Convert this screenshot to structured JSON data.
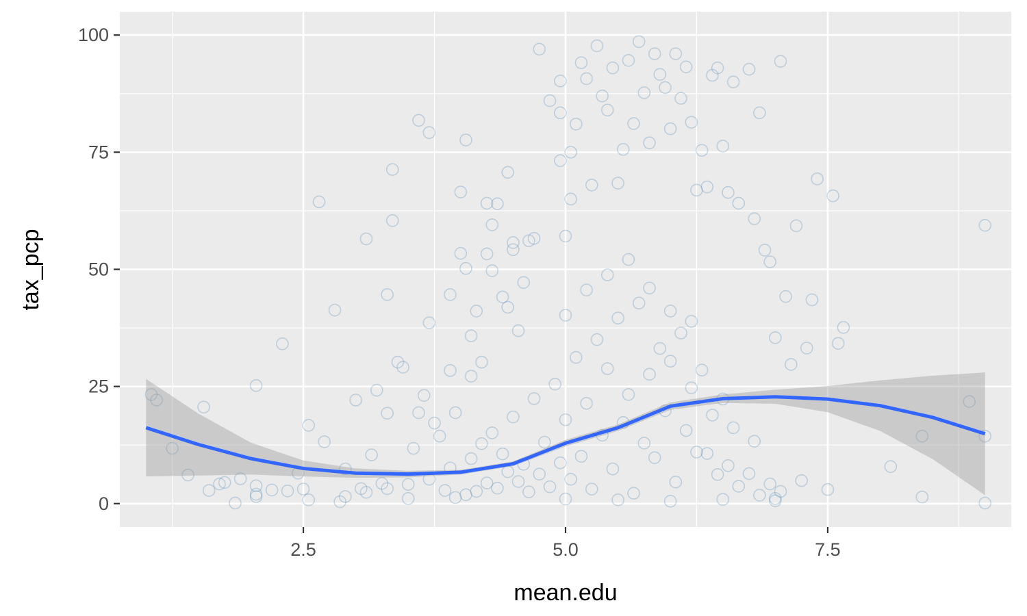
{
  "chart_data": {
    "type": "scatter",
    "title": "",
    "xlabel": "mean.edu",
    "ylabel": "tax_pcp",
    "xlim": [
      0.75,
      9.25
    ],
    "ylim": [
      -5,
      105
    ],
    "x_ticks": [
      2.5,
      5.0,
      7.5
    ],
    "x_tick_labels": [
      "2.5",
      "5.0",
      "7.5"
    ],
    "y_ticks": [
      0,
      25,
      50,
      75,
      100
    ],
    "y_tick_labels": [
      "0",
      "25",
      "50",
      "75",
      "100"
    ],
    "grid": true,
    "panel_background": "#ebebeb",
    "grid_color": "#ffffff",
    "point_color": "#4682b4",
    "smooth_line_color": "#3366ff",
    "ribbon_color": "#999999",
    "points": [
      [
        1.05,
        23.3
      ],
      [
        1.1,
        22.1
      ],
      [
        1.25,
        11.8
      ],
      [
        1.4,
        6.1
      ],
      [
        1.55,
        20.6
      ],
      [
        1.6,
        2.8
      ],
      [
        1.7,
        4.2
      ],
      [
        1.75,
        4.5
      ],
      [
        1.85,
        0.1
      ],
      [
        1.9,
        5.3
      ],
      [
        2.05,
        25.2
      ],
      [
        2.05,
        3.8
      ],
      [
        2.05,
        2.0
      ],
      [
        2.05,
        1.5
      ],
      [
        2.2,
        2.9
      ],
      [
        2.3,
        34.1
      ],
      [
        2.35,
        2.7
      ],
      [
        2.45,
        6.5
      ],
      [
        2.5,
        3.1
      ],
      [
        2.55,
        16.7
      ],
      [
        2.55,
        0.8
      ],
      [
        2.65,
        64.4
      ],
      [
        2.7,
        13.2
      ],
      [
        2.8,
        41.3
      ],
      [
        2.85,
        0.4
      ],
      [
        2.9,
        7.4
      ],
      [
        3.0,
        22.1
      ],
      [
        3.05,
        3.2
      ],
      [
        3.1,
        56.5
      ],
      [
        3.15,
        10.4
      ],
      [
        3.2,
        24.2
      ],
      [
        3.25,
        4.3
      ],
      [
        3.3,
        19.3
      ],
      [
        3.3,
        44.6
      ],
      [
        3.35,
        71.3
      ],
      [
        3.35,
        60.4
      ],
      [
        3.4,
        30.2
      ],
      [
        3.45,
        29.1
      ],
      [
        3.5,
        1.1
      ],
      [
        3.55,
        11.8
      ],
      [
        3.6,
        81.8
      ],
      [
        3.7,
        79.2
      ],
      [
        3.7,
        38.6
      ],
      [
        3.65,
        23.1
      ],
      [
        3.6,
        19.4
      ],
      [
        3.75,
        17.2
      ],
      [
        3.8,
        14.4
      ],
      [
        3.9,
        44.6
      ],
      [
        3.9,
        28.4
      ],
      [
        3.95,
        19.4
      ],
      [
        4.0,
        66.5
      ],
      [
        4.0,
        53.4
      ],
      [
        4.05,
        77.6
      ],
      [
        4.05,
        50.2
      ],
      [
        4.1,
        35.8
      ],
      [
        4.1,
        27.2
      ],
      [
        4.15,
        41.1
      ],
      [
        4.2,
        30.2
      ],
      [
        4.25,
        64.1
      ],
      [
        4.25,
        53.3
      ],
      [
        4.3,
        59.5
      ],
      [
        4.3,
        49.7
      ],
      [
        4.35,
        64.0
      ],
      [
        4.4,
        44.1
      ],
      [
        4.45,
        70.7
      ],
      [
        4.45,
        41.9
      ],
      [
        4.5,
        55.7
      ],
      [
        4.5,
        54.2
      ],
      [
        4.55,
        36.9
      ],
      [
        4.6,
        47.2
      ],
      [
        4.65,
        56.1
      ],
      [
        4.7,
        56.6
      ],
      [
        4.75,
        97.0
      ],
      [
        4.85,
        86.0
      ],
      [
        4.95,
        90.2
      ],
      [
        4.95,
        83.4
      ],
      [
        4.95,
        73.2
      ],
      [
        5.0,
        57.1
      ],
      [
        5.05,
        75.0
      ],
      [
        5.05,
        65.0
      ],
      [
        5.1,
        81.0
      ],
      [
        5.15,
        94.1
      ],
      [
        5.2,
        90.7
      ],
      [
        5.25,
        68.0
      ],
      [
        5.3,
        97.7
      ],
      [
        5.35,
        87.0
      ],
      [
        5.4,
        84.0
      ],
      [
        5.45,
        93.0
      ],
      [
        5.5,
        68.4
      ],
      [
        5.55,
        75.6
      ],
      [
        5.6,
        94.6
      ],
      [
        5.65,
        81.1
      ],
      [
        5.7,
        98.6
      ],
      [
        5.75,
        87.7
      ],
      [
        5.8,
        77.0
      ],
      [
        5.85,
        96.0
      ],
      [
        5.9,
        91.6
      ],
      [
        5.95,
        88.8
      ],
      [
        6.0,
        80.0
      ],
      [
        6.05,
        96.0
      ],
      [
        6.1,
        86.5
      ],
      [
        6.15,
        93.2
      ],
      [
        6.2,
        81.4
      ],
      [
        6.25,
        66.9
      ],
      [
        6.3,
        75.4
      ],
      [
        6.35,
        67.6
      ],
      [
        6.4,
        91.4
      ],
      [
        6.45,
        93.0
      ],
      [
        6.5,
        76.3
      ],
      [
        6.55,
        66.4
      ],
      [
        6.6,
        90.0
      ],
      [
        6.65,
        64.1
      ],
      [
        6.75,
        92.7
      ],
      [
        6.8,
        60.8
      ],
      [
        6.85,
        83.4
      ],
      [
        6.9,
        54.1
      ],
      [
        6.95,
        51.6
      ],
      [
        7.0,
        35.4
      ],
      [
        7.05,
        94.4
      ],
      [
        7.1,
        44.2
      ],
      [
        7.15,
        29.7
      ],
      [
        7.2,
        59.3
      ],
      [
        7.3,
        33.2
      ],
      [
        7.35,
        43.5
      ],
      [
        7.4,
        69.3
      ],
      [
        7.5,
        3.0
      ],
      [
        7.55,
        65.7
      ],
      [
        7.6,
        34.2
      ],
      [
        7.65,
        37.6
      ],
      [
        8.1,
        7.9
      ],
      [
        8.4,
        14.4
      ],
      [
        8.4,
        1.4
      ],
      [
        8.85,
        21.8
      ],
      [
        9.0,
        59.4
      ],
      [
        9.0,
        14.4
      ],
      [
        9.0,
        0.1
      ],
      [
        4.2,
        12.8
      ],
      [
        4.4,
        10.6
      ],
      [
        4.6,
        8.4
      ],
      [
        4.8,
        13.1
      ],
      [
        5.0,
        17.9
      ],
      [
        5.2,
        21.4
      ],
      [
        5.4,
        28.8
      ],
      [
        5.6,
        23.3
      ],
      [
        5.8,
        27.6
      ],
      [
        6.0,
        30.4
      ],
      [
        6.2,
        24.7
      ],
      [
        6.4,
        18.9
      ],
      [
        6.6,
        16.2
      ],
      [
        6.8,
        13.3
      ],
      [
        4.9,
        25.5
      ],
      [
        5.1,
        31.2
      ],
      [
        5.3,
        35.0
      ],
      [
        5.5,
        39.6
      ],
      [
        5.7,
        42.8
      ],
      [
        5.9,
        33.1
      ],
      [
        6.1,
        36.4
      ],
      [
        6.3,
        28.5
      ],
      [
        6.5,
        22.3
      ],
      [
        5.0,
        40.2
      ],
      [
        5.2,
        45.6
      ],
      [
        5.4,
        48.8
      ],
      [
        5.6,
        52.1
      ],
      [
        5.8,
        46.0
      ],
      [
        6.0,
        41.1
      ],
      [
        6.2,
        38.9
      ],
      [
        4.7,
        22.4
      ],
      [
        4.5,
        18.5
      ],
      [
        4.3,
        15.1
      ],
      [
        4.1,
        9.6
      ],
      [
        3.9,
        7.6
      ],
      [
        3.7,
        5.2
      ],
      [
        3.5,
        4.1
      ],
      [
        3.3,
        3.2
      ],
      [
        3.1,
        2.4
      ],
      [
        2.9,
        1.5
      ],
      [
        5.05,
        5.2
      ],
      [
        5.25,
        3.1
      ],
      [
        5.45,
        7.4
      ],
      [
        5.65,
        2.2
      ],
      [
        5.85,
        9.8
      ],
      [
        6.05,
        4.6
      ],
      [
        6.25,
        11.0
      ],
      [
        6.45,
        6.2
      ],
      [
        6.65,
        3.7
      ],
      [
        6.85,
        1.8
      ],
      [
        4.85,
        3.6
      ],
      [
        4.65,
        2.5
      ],
      [
        4.45,
        6.8
      ],
      [
        4.25,
        4.4
      ],
      [
        4.05,
        1.9
      ],
      [
        3.85,
        2.8
      ],
      [
        7.05,
        2.6
      ],
      [
        7.25,
        4.9
      ],
      [
        7.0,
        0.6
      ],
      [
        7.0,
        1.1
      ],
      [
        5.15,
        10.1
      ],
      [
        5.35,
        14.6
      ],
      [
        5.55,
        17.3
      ],
      [
        5.75,
        12.9
      ],
      [
        5.95,
        19.8
      ],
      [
        6.15,
        15.6
      ],
      [
        6.35,
        10.7
      ],
      [
        6.55,
        8.1
      ],
      [
        6.75,
        6.4
      ],
      [
        6.95,
        4.2
      ],
      [
        4.95,
        8.7
      ],
      [
        4.75,
        6.3
      ],
      [
        4.55,
        4.7
      ],
      [
        4.35,
        3.3
      ],
      [
        4.15,
        2.6
      ],
      [
        3.95,
        1.3
      ],
      [
        5.0,
        1.0
      ],
      [
        5.5,
        0.8
      ],
      [
        6.0,
        0.5
      ],
      [
        6.5,
        0.9
      ]
    ],
    "smooth_line": {
      "x": [
        1.0,
        1.5,
        2.0,
        2.5,
        3.0,
        3.5,
        4.0,
        4.5,
        5.0,
        5.5,
        6.0,
        6.5,
        7.0,
        7.5,
        8.0,
        8.5,
        9.0
      ],
      "y": [
        16.2,
        12.6,
        9.6,
        7.5,
        6.5,
        6.3,
        6.7,
        8.5,
        12.9,
        16.2,
        20.8,
        22.4,
        22.8,
        22.3,
        20.9,
        18.4,
        14.9
      ]
    },
    "ribbon": {
      "x": [
        1.0,
        1.5,
        2.0,
        2.5,
        3.0,
        3.5,
        4.0,
        4.5,
        5.0,
        5.5,
        6.0,
        6.5,
        7.0,
        7.5,
        8.0,
        8.5,
        9.0
      ],
      "lower": [
        5.8,
        6.0,
        6.2,
        5.8,
        5.5,
        5.6,
        6.2,
        8.0,
        12.2,
        15.5,
        20.0,
        21.5,
        21.3,
        19.5,
        15.5,
        9.5,
        1.8
      ],
      "upper": [
        26.6,
        19.2,
        13.0,
        9.2,
        7.5,
        7.0,
        7.2,
        9.0,
        13.6,
        16.9,
        21.6,
        23.3,
        24.3,
        25.1,
        26.3,
        27.3,
        28.0
      ]
    }
  }
}
